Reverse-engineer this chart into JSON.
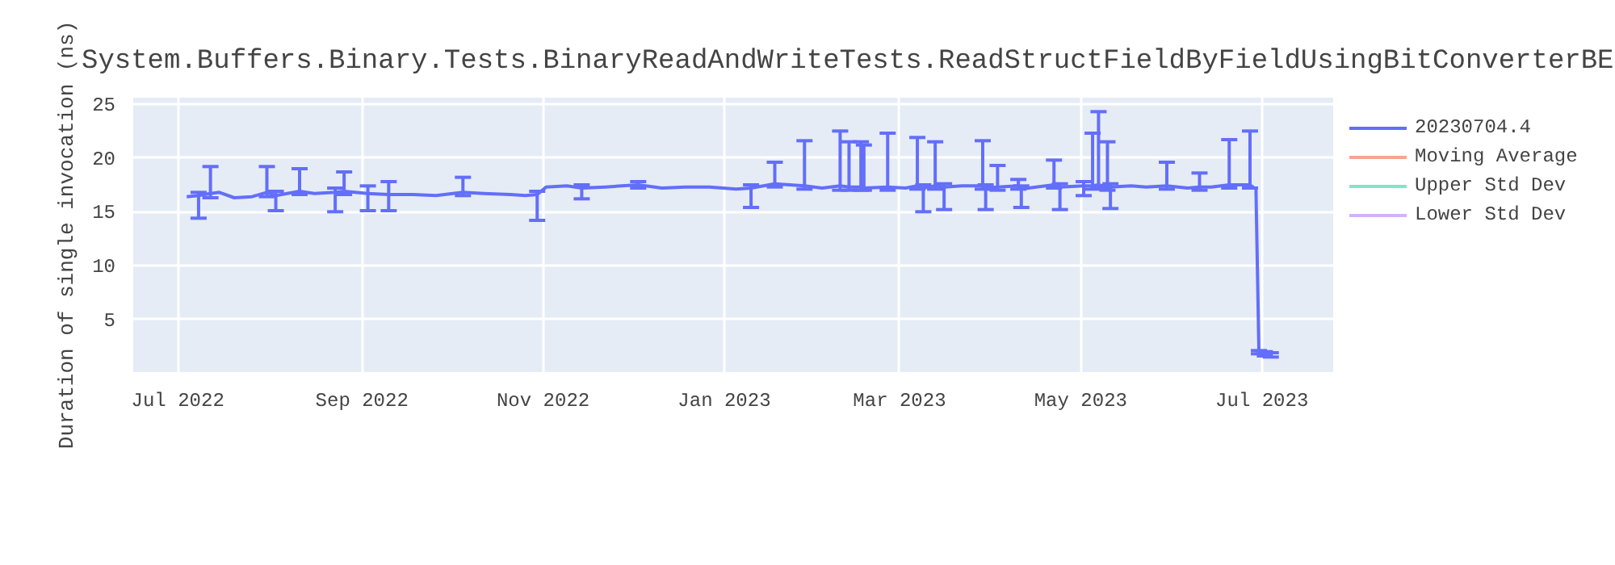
{
  "chart_data": {
    "type": "line",
    "title": "System.Buffers.Binary.Tests.BinaryReadAndWriteTests.ReadStructFieldByFieldUsingBitConverterBE",
    "ylabel": "Duration of single invocation (ns)",
    "x": [
      "2022-07-04",
      "2022-07-08",
      "2022-07-12",
      "2022-07-15",
      "2022-07-20",
      "2022-07-26",
      "2022-07-31",
      "2022-08-03",
      "2022-08-11",
      "2022-08-16",
      "2022-08-23",
      "2022-08-26",
      "2022-09-03",
      "2022-09-10",
      "2022-09-18",
      "2022-09-26",
      "2022-10-05",
      "2022-10-12",
      "2022-10-21",
      "2022-10-26",
      "2022-10-30",
      "2022-11-02",
      "2022-11-09",
      "2022-11-14",
      "2022-11-22",
      "2022-12-03",
      "2022-12-11",
      "2022-12-19",
      "2022-12-27",
      "2023-01-05",
      "2023-01-10",
      "2023-01-18",
      "2023-01-28",
      "2023-02-03",
      "2023-02-09",
      "2023-02-12",
      "2023-02-16",
      "2023-02-17",
      "2023-02-25",
      "2023-03-03",
      "2023-03-07",
      "2023-03-09",
      "2023-03-13",
      "2023-03-16",
      "2023-03-22",
      "2023-03-29",
      "2023-03-30",
      "2023-04-03",
      "2023-04-10",
      "2023-04-11",
      "2023-04-16",
      "2023-04-22",
      "2023-04-24",
      "2023-05-02",
      "2023-05-05",
      "2023-05-07",
      "2023-05-10",
      "2023-05-11",
      "2023-05-18",
      "2023-05-23",
      "2023-05-30",
      "2023-06-06",
      "2023-06-10",
      "2023-06-14",
      "2023-06-20",
      "2023-06-27",
      "2023-06-29",
      "2023-06-30",
      "2023-07-02",
      "2023-07-04"
    ],
    "series": [
      {
        "name": "20230704.4",
        "color": "#636efa",
        "values": [
          16.4,
          16.5,
          16.7,
          16.8,
          16.3,
          16.4,
          16.8,
          16.5,
          16.9,
          16.7,
          16.8,
          16.9,
          16.7,
          16.6,
          16.6,
          16.5,
          16.8,
          16.7,
          16.6,
          16.5,
          16.6,
          17.3,
          17.4,
          17.2,
          17.3,
          17.5,
          17.2,
          17.3,
          17.3,
          17.1,
          17.2,
          17.6,
          17.4,
          17.2,
          17.4,
          17.3,
          17.3,
          17.2,
          17.3,
          17.2,
          17.4,
          17.2,
          17.4,
          17.3,
          17.4,
          17.4,
          17.2,
          17.3,
          17.4,
          17.1,
          17.3,
          17.5,
          17.3,
          17.4,
          17.4,
          17.5,
          17.3,
          17.3,
          17.4,
          17.3,
          17.4,
          17.2,
          17.3,
          17.3,
          17.5,
          17.5,
          17.1,
          2.0,
          1.8,
          1.7
        ],
        "errors": [
          null,
          [
            14.4,
            16.8
          ],
          [
            16.3,
            19.2
          ],
          null,
          null,
          null,
          [
            16.4,
            19.2
          ],
          [
            15.1,
            16.9
          ],
          [
            16.6,
            19.0
          ],
          null,
          [
            15.0,
            17.2
          ],
          [
            16.6,
            18.7
          ],
          [
            15.1,
            17.4
          ],
          [
            15.1,
            17.8
          ],
          null,
          null,
          [
            16.5,
            18.2
          ],
          null,
          null,
          null,
          [
            14.2,
            16.9
          ],
          null,
          null,
          [
            16.2,
            17.5
          ],
          null,
          [
            17.2,
            17.8
          ],
          null,
          null,
          null,
          null,
          [
            15.4,
            17.5
          ],
          [
            17.3,
            19.6
          ],
          [
            17.1,
            21.6
          ],
          null,
          [
            17.0,
            22.5
          ],
          [
            17.0,
            21.5
          ],
          [
            17.0,
            21.5
          ],
          [
            17.0,
            21.2
          ],
          [
            17.0,
            22.3
          ],
          null,
          [
            17.1,
            21.9
          ],
          [
            15.0,
            17.5
          ],
          [
            17.1,
            21.5
          ],
          [
            15.2,
            17.6
          ],
          null,
          [
            17.1,
            21.6
          ],
          [
            15.2,
            17.5
          ],
          [
            17.0,
            19.3
          ],
          [
            17.1,
            18.0
          ],
          [
            15.4,
            17.4
          ],
          null,
          [
            17.2,
            19.8
          ],
          [
            15.2,
            17.6
          ],
          [
            16.5,
            17.8
          ],
          [
            17.1,
            22.3
          ],
          [
            17.2,
            24.3
          ],
          [
            17.0,
            21.5
          ],
          [
            15.3,
            17.6
          ],
          null,
          null,
          [
            17.1,
            19.6
          ],
          null,
          [
            17.0,
            18.6
          ],
          null,
          [
            17.2,
            21.7
          ],
          [
            17.2,
            22.5
          ],
          null,
          [
            1.8,
            2.1
          ],
          [
            1.6,
            2.0
          ],
          [
            1.5,
            1.9
          ]
        ]
      },
      {
        "name": "Moving Average",
        "color": "#f7a491",
        "values": [
          null,
          null,
          null,
          null,
          null,
          null,
          null,
          null,
          null,
          null,
          null,
          null,
          null,
          null,
          null,
          null,
          null,
          null,
          null,
          null,
          null,
          null,
          null,
          null,
          null,
          null,
          null,
          null,
          null,
          null,
          null,
          null,
          null,
          null,
          null,
          null,
          null,
          null,
          null,
          null,
          null,
          null,
          null,
          null,
          null,
          null,
          null,
          null,
          null,
          null,
          null,
          null,
          null,
          null,
          null,
          null,
          null,
          null,
          null,
          null,
          null,
          null,
          null,
          null,
          null,
          null,
          null,
          null,
          null,
          null
        ]
      },
      {
        "name": "Upper Std Dev",
        "color": "#80e6c8",
        "values": [
          null,
          null,
          null,
          null,
          null,
          null,
          null,
          null,
          null,
          null,
          null,
          null,
          null,
          null,
          null,
          null,
          null,
          null,
          null,
          null,
          null,
          null,
          null,
          null,
          null,
          null,
          null,
          null,
          null,
          null,
          null,
          null,
          null,
          null,
          null,
          null,
          null,
          null,
          null,
          null,
          null,
          null,
          null,
          null,
          null,
          null,
          null,
          null,
          null,
          null,
          null,
          null,
          null,
          null,
          null,
          null,
          null,
          null,
          null,
          null,
          null,
          null,
          null,
          null,
          null,
          null,
          null,
          null,
          null,
          null
        ]
      },
      {
        "name": "Lower Std Dev",
        "color": "#d5b1fc",
        "values": [
          null,
          null,
          null,
          null,
          null,
          null,
          null,
          null,
          null,
          null,
          null,
          null,
          null,
          null,
          null,
          null,
          null,
          null,
          null,
          null,
          null,
          null,
          null,
          null,
          null,
          null,
          null,
          null,
          null,
          null,
          null,
          null,
          null,
          null,
          null,
          null,
          null,
          null,
          null,
          null,
          null,
          null,
          null,
          null,
          null,
          null,
          null,
          null,
          null,
          null,
          null,
          null,
          null,
          null,
          null,
          null,
          null,
          null,
          null,
          null,
          null,
          null,
          null,
          null,
          null,
          null,
          null,
          null,
          null,
          null
        ]
      }
    ],
    "xlim": [
      "2022-06-16",
      "2023-07-25"
    ],
    "xticks": [
      {
        "value": "2022-07-01",
        "label": "Jul 2022"
      },
      {
        "value": "2022-09-01",
        "label": "Sep 2022"
      },
      {
        "value": "2022-11-01",
        "label": "Nov 2022"
      },
      {
        "value": "2023-01-01",
        "label": "Jan 2023"
      },
      {
        "value": "2023-03-01",
        "label": "Mar 2023"
      },
      {
        "value": "2023-05-01",
        "label": "May 2023"
      },
      {
        "value": "2023-07-01",
        "label": "Jul 2023"
      }
    ],
    "ylim": [
      0.1,
      25.6
    ],
    "yticks": [
      5,
      10,
      15,
      20,
      25
    ],
    "grid": true,
    "legend": "right"
  }
}
